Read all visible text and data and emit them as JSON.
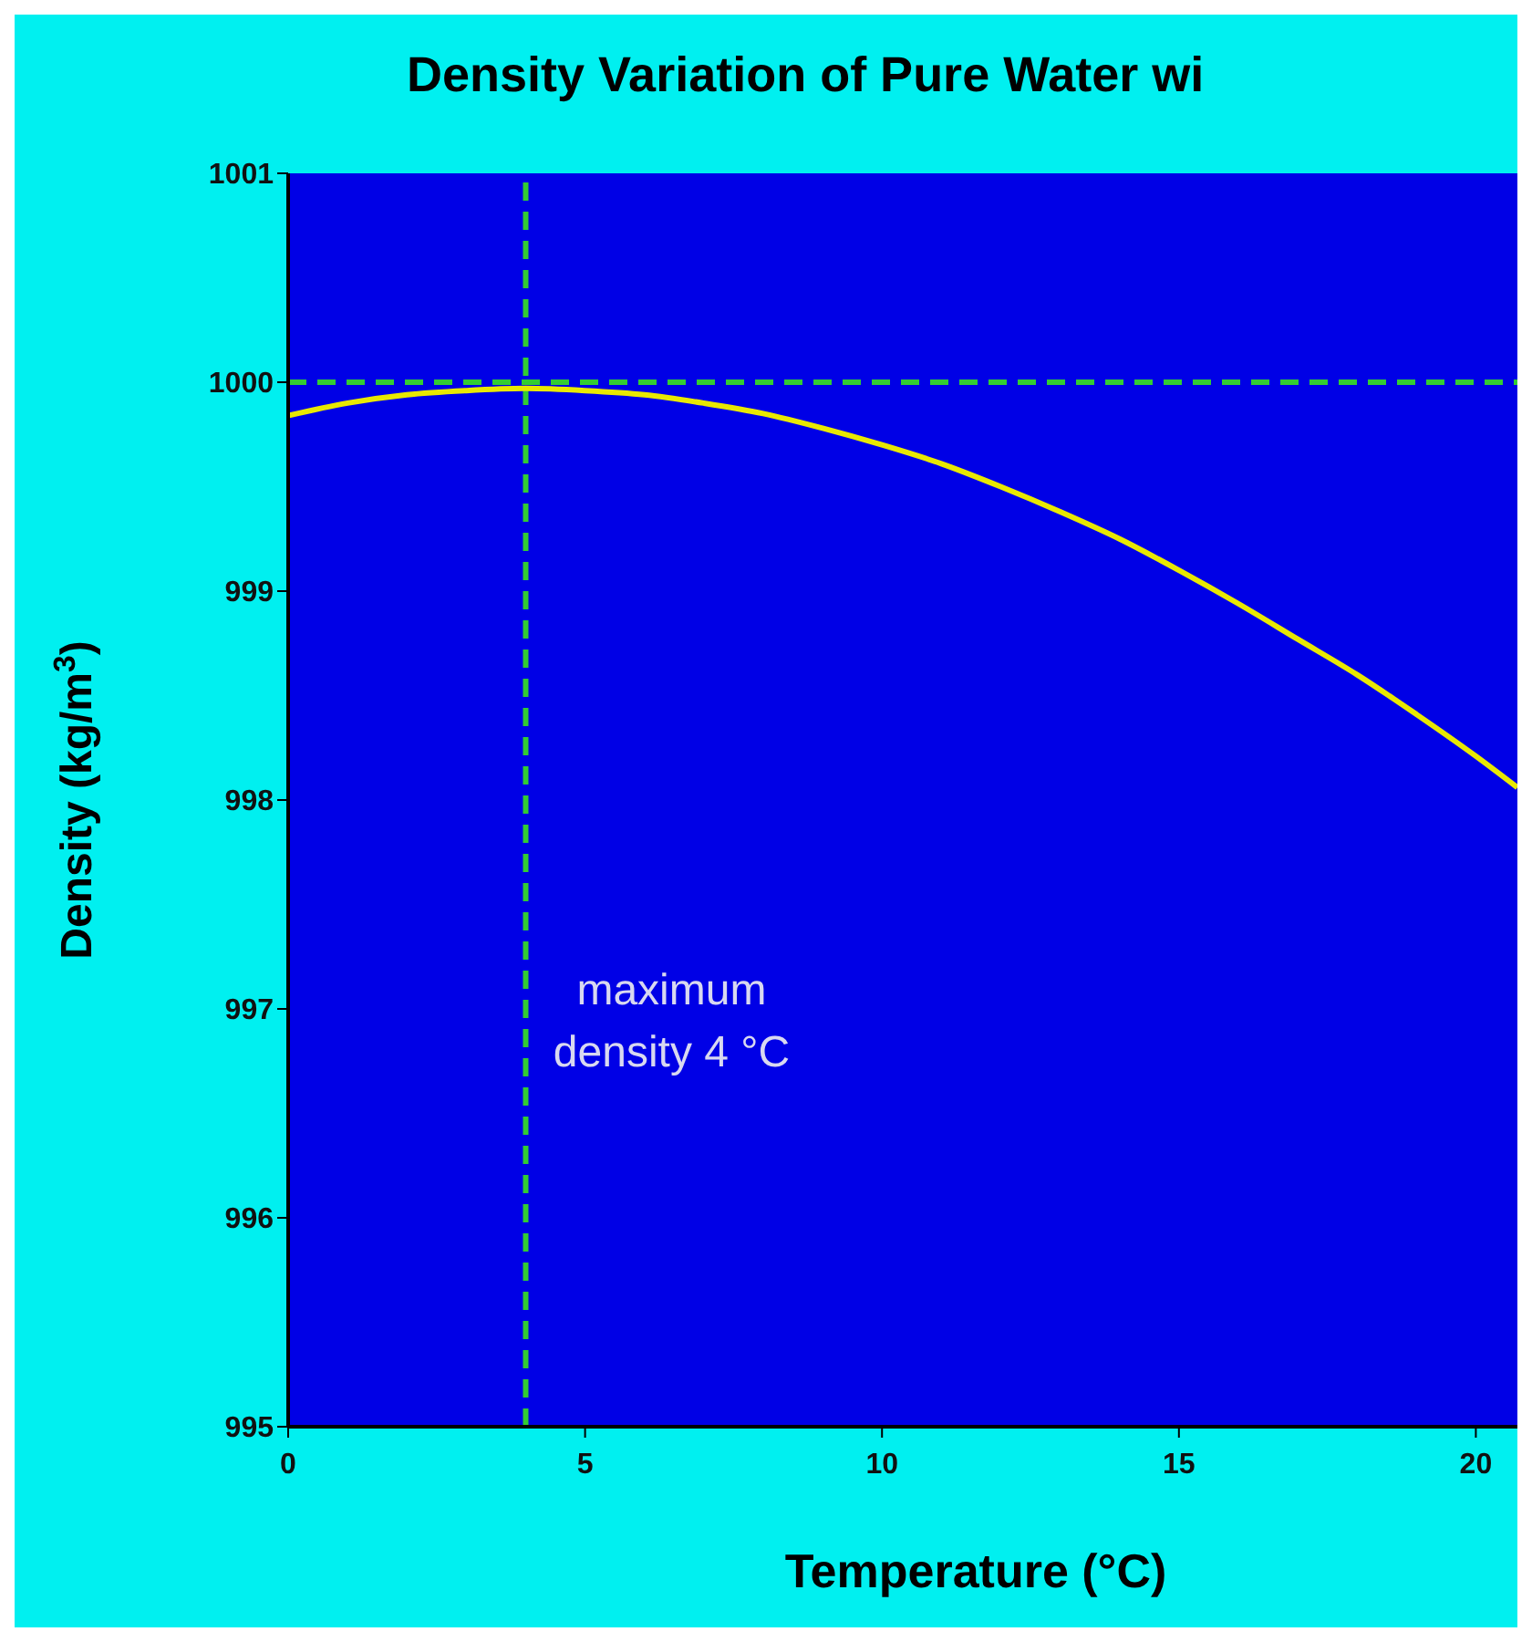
{
  "chart_data": {
    "type": "line",
    "title": "Density Variation of Pure Water wi",
    "xlabel": "Temperature (°C)",
    "ylabel": "Density (kg/m$^{3}$)",
    "x": [
      0,
      1,
      2,
      3,
      4,
      5,
      6,
      7,
      8,
      9,
      10,
      11,
      12,
      13,
      14,
      15,
      16,
      17,
      18,
      19,
      20,
      20.7
    ],
    "series": [
      {
        "color": "#e8e800",
        "values": [
          999.84,
          999.9,
          999.94,
          999.96,
          999.97,
          999.96,
          999.94,
          999.9,
          999.85,
          999.78,
          999.7,
          999.61,
          999.5,
          999.38,
          999.25,
          999.1,
          998.94,
          998.77,
          998.6,
          998.41,
          998.21,
          998.06
        ]
      }
    ],
    "xlim": [
      0,
      20.7
    ],
    "xticks": [
      0,
      5,
      10,
      15,
      20
    ],
    "ylim": [
      995,
      1001
    ],
    "yticks": [
      995,
      996,
      997,
      998,
      999,
      1000,
      1001
    ],
    "marker": "none",
    "line_style": "solid",
    "grid": false,
    "ref_lines": [
      {
        "axis": "x",
        "value": 4,
        "label": null,
        "color": "#33cc33",
        "line_style": "dashed"
      },
      {
        "axis": "y",
        "value": 1000,
        "label": null,
        "color": "#33cc33",
        "line_style": "dashed"
      }
    ],
    "annotations": [
      {
        "text": "maximum density 4 °C",
        "x": 4,
        "y": 996.9
      }
    ]
  }
}
